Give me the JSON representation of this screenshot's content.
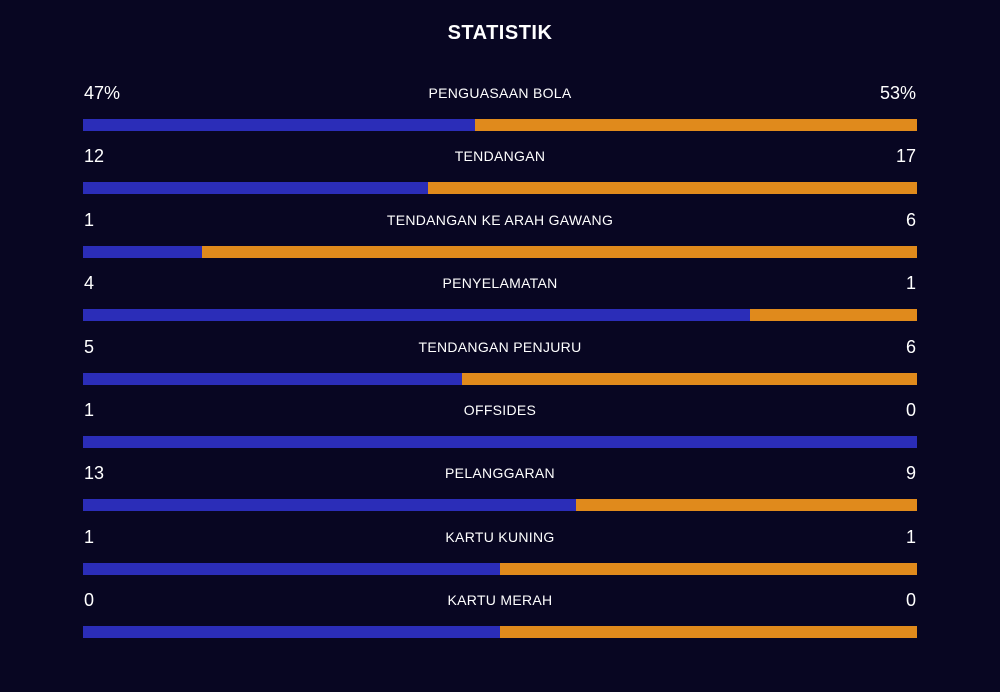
{
  "title": "STATISTIK",
  "colors": {
    "background": "#080622",
    "home": "#2b2db8",
    "away": "#e08a1c"
  },
  "stats": [
    {
      "label": "PENGUASAAN BOLA",
      "home": "47%",
      "away": "53%",
      "home_share": 0.47
    },
    {
      "label": "TENDANGAN",
      "home": "12",
      "away": "17",
      "home_share": 0.414
    },
    {
      "label": "TENDANGAN KE ARAH GAWANG",
      "home": "1",
      "away": "6",
      "home_share": 0.143
    },
    {
      "label": "PENYELAMATAN",
      "home": "4",
      "away": "1",
      "home_share": 0.8
    },
    {
      "label": "TENDANGAN PENJURU",
      "home": "5",
      "away": "6",
      "home_share": 0.455
    },
    {
      "label": "OFFSIDES",
      "home": "1",
      "away": "0",
      "home_share": 1.0
    },
    {
      "label": "PELANGGARAN",
      "home": "13",
      "away": "9",
      "home_share": 0.591
    },
    {
      "label": "KARTU KUNING",
      "home": "1",
      "away": "1",
      "home_share": 0.5
    },
    {
      "label": "KARTU MERAH",
      "home": "0",
      "away": "0",
      "home_share": 0.5
    }
  ]
}
